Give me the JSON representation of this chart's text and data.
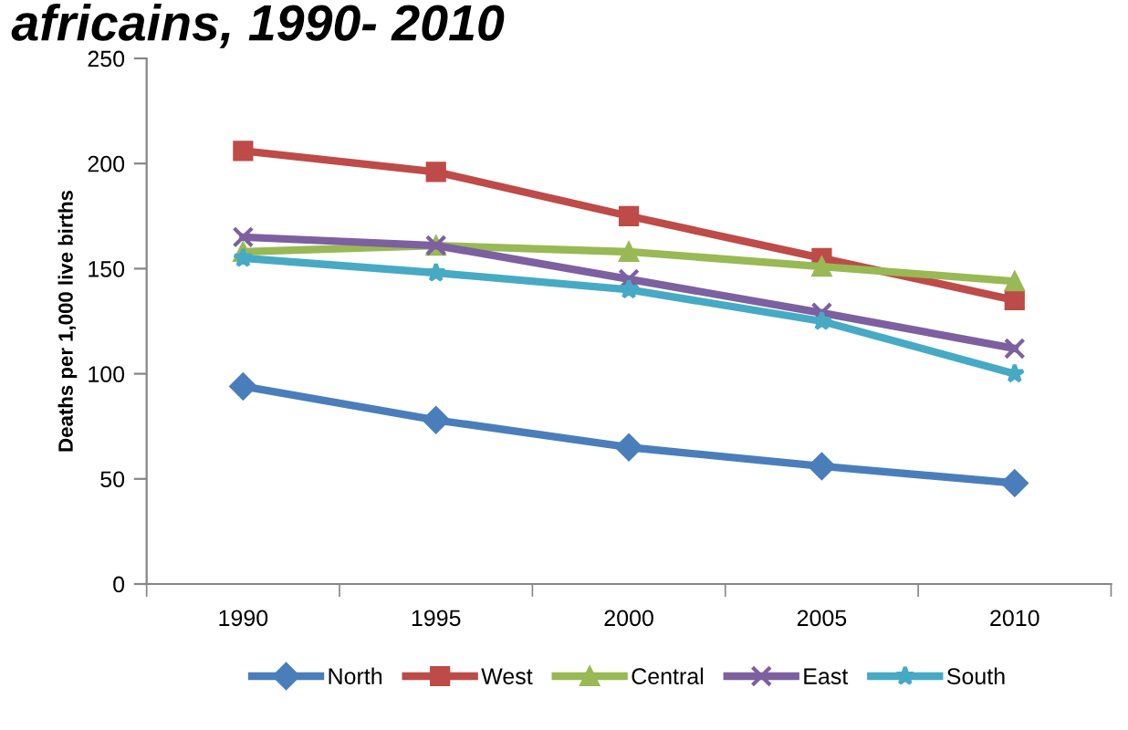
{
  "chart_data": {
    "type": "line",
    "title": "africains, 1990- 2010",
    "ylabel": "Deaths per 1,000 live births",
    "categories": [
      "1990",
      "1995",
      "2000",
      "2005",
      "2010"
    ],
    "series": [
      {
        "name": "North",
        "color": "#4a7ebb",
        "marker": "diamond",
        "values": [
          94,
          78,
          65,
          56,
          48
        ]
      },
      {
        "name": "West",
        "color": "#be4b48",
        "marker": "square",
        "values": [
          206,
          196,
          175,
          155,
          135
        ]
      },
      {
        "name": "Central",
        "color": "#98b954",
        "marker": "triangle",
        "values": [
          158,
          161,
          158,
          151,
          144
        ]
      },
      {
        "name": "East",
        "color": "#7d60a0",
        "marker": "cross",
        "values": [
          165,
          161,
          145,
          129,
          112
        ]
      },
      {
        "name": "South",
        "color": "#46aac5",
        "marker": "star",
        "values": [
          155,
          148,
          140,
          125,
          100
        ]
      }
    ],
    "ylim": [
      0,
      250
    ],
    "yticks": [
      0,
      50,
      100,
      150,
      200,
      250
    ],
    "grid": false,
    "legend": "bottom",
    "line_style": "solid"
  }
}
